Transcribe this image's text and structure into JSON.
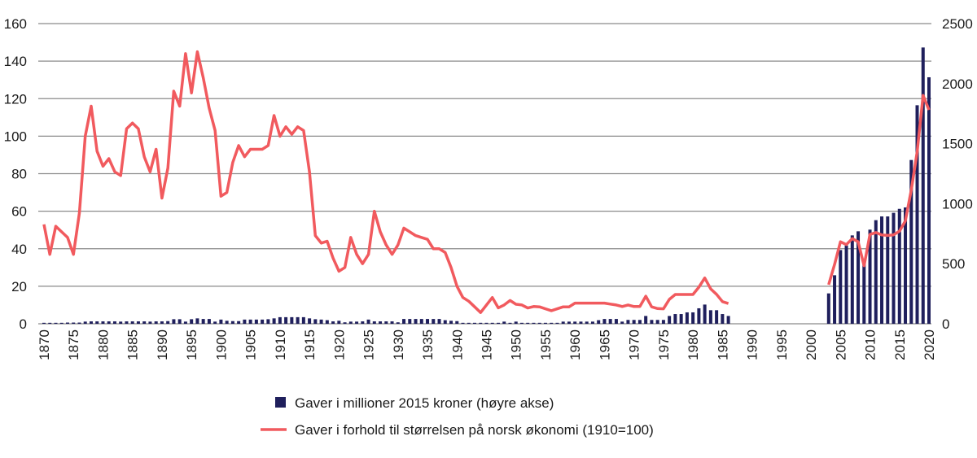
{
  "chart_data": {
    "type": "bar+line",
    "title": "",
    "xlabel": "",
    "ylabel_left": "",
    "ylabel_right": "",
    "x": [
      1870,
      1871,
      1872,
      1873,
      1874,
      1875,
      1876,
      1877,
      1878,
      1879,
      1880,
      1881,
      1882,
      1883,
      1884,
      1885,
      1886,
      1887,
      1888,
      1889,
      1890,
      1891,
      1892,
      1893,
      1894,
      1895,
      1896,
      1897,
      1898,
      1899,
      1900,
      1901,
      1902,
      1903,
      1904,
      1905,
      1906,
      1907,
      1908,
      1909,
      1910,
      1911,
      1912,
      1913,
      1914,
      1915,
      1916,
      1917,
      1918,
      1919,
      1920,
      1921,
      1922,
      1923,
      1924,
      1925,
      1926,
      1927,
      1928,
      1929,
      1930,
      1931,
      1932,
      1933,
      1934,
      1935,
      1936,
      1937,
      1938,
      1939,
      1940,
      1941,
      1942,
      1943,
      1944,
      1945,
      1946,
      1947,
      1948,
      1949,
      1950,
      1951,
      1952,
      1953,
      1954,
      1955,
      1956,
      1957,
      1958,
      1959,
      1960,
      1961,
      1962,
      1963,
      1964,
      1965,
      1966,
      1967,
      1968,
      1969,
      1970,
      1971,
      1972,
      1973,
      1974,
      1975,
      1976,
      1977,
      1978,
      1979,
      1980,
      1981,
      1982,
      1983,
      1984,
      1985,
      1986,
      1987,
      1988,
      1989,
      1990,
      1991,
      1992,
      1993,
      1994,
      1995,
      1996,
      1997,
      1998,
      1999,
      2000,
      2001,
      2002,
      2003,
      2004,
      2005,
      2006,
      2007,
      2008,
      2009,
      2010,
      2011,
      2012,
      2013,
      2014,
      2015,
      2016,
      2017,
      2018,
      2019,
      2020
    ],
    "xlim": [
      1870,
      2020
    ],
    "x_ticks": [
      "1870",
      "1875",
      "1880",
      "1885",
      "1890",
      "1895",
      "1900",
      "1905",
      "1910",
      "1915",
      "1920",
      "1925",
      "1930",
      "1935",
      "1940",
      "1945",
      "1950",
      "1955",
      "1960",
      "1965",
      "1970",
      "1975",
      "1980",
      "1985",
      "1990",
      "1995",
      "2000",
      "2005",
      "2010",
      "2015",
      "2020"
    ],
    "y_left": {
      "lim": [
        0,
        160
      ],
      "ticks": [
        "0",
        "20",
        "40",
        "60",
        "80",
        "100",
        "120",
        "140",
        "160"
      ]
    },
    "y_right": {
      "lim": [
        0,
        2500
      ],
      "ticks": [
        "0",
        "500",
        "1000",
        "1500",
        "2000",
        "2500"
      ]
    },
    "grid": true,
    "legend_placement": "bottom",
    "series": [
      {
        "name": "Gaver i millioner 2015 kroner (høyre akse)",
        "type": "bar",
        "axis": "right",
        "color": "#1f1f5c",
        "values": [
          8,
          8,
          8,
          8,
          10,
          10,
          10,
          18,
          20,
          20,
          20,
          20,
          20,
          18,
          20,
          20,
          20,
          20,
          18,
          20,
          20,
          22,
          38,
          38,
          18,
          38,
          45,
          40,
          40,
          18,
          35,
          25,
          22,
          22,
          35,
          35,
          35,
          35,
          38,
          45,
          55,
          55,
          55,
          55,
          55,
          45,
          38,
          35,
          30,
          20,
          25,
          12,
          18,
          18,
          20,
          35,
          20,
          20,
          20,
          20,
          12,
          40,
          40,
          40,
          40,
          40,
          40,
          40,
          30,
          25,
          22,
          8,
          8,
          8,
          8,
          8,
          8,
          8,
          18,
          8,
          18,
          8,
          8,
          8,
          8,
          8,
          8,
          8,
          18,
          18,
          18,
          18,
          18,
          18,
          30,
          40,
          40,
          40,
          18,
          32,
          32,
          32,
          65,
          32,
          32,
          32,
          65,
          81,
          81,
          95,
          95,
          129,
          160,
          113,
          113,
          81,
          65,
          null,
          null,
          null,
          null,
          null,
          null,
          null,
          null,
          null,
          null,
          null,
          null,
          null,
          null,
          null,
          null,
          253,
          404,
          614,
          652,
          736,
          770,
          506,
          784,
          863,
          894,
          894,
          924,
          957,
          969,
          1364,
          1820,
          2301,
          2053
        ]
      },
      {
        "name": "Gaver i forhold til størrelsen på norsk økonomi (1910=100)",
        "type": "line",
        "axis": "left",
        "color": "#f15a5e",
        "values": [
          53,
          37,
          52,
          49,
          46,
          37,
          59,
          100,
          116,
          92,
          84,
          88,
          81,
          79,
          104,
          107,
          104,
          89,
          81,
          93,
          67,
          83,
          124,
          116,
          144,
          123,
          145,
          131,
          115,
          103,
          68,
          70,
          86,
          95,
          89,
          93,
          93,
          93,
          95,
          111,
          100,
          105,
          101,
          105,
          103,
          81,
          47,
          43,
          44,
          35,
          28,
          30,
          46,
          37,
          32,
          37,
          60,
          49,
          42,
          37,
          42,
          51,
          49,
          47,
          46,
          45,
          40,
          40,
          38,
          30,
          20,
          14,
          12,
          9,
          6,
          10,
          14,
          8.5,
          10,
          12.4,
          10.4,
          10,
          8.4,
          9.2,
          9,
          8,
          7,
          8,
          9,
          9,
          11,
          11,
          11,
          11,
          11,
          11,
          10.5,
          10,
          9.2,
          10,
          9.2,
          9.2,
          14.7,
          9,
          8.1,
          8,
          13,
          15.6,
          15.6,
          15.6,
          15.6,
          19.5,
          24.4,
          18.6,
          15.7,
          11.8,
          10.8,
          null,
          null,
          null,
          null,
          null,
          null,
          null,
          null,
          null,
          null,
          null,
          null,
          null,
          null,
          null,
          null,
          20.8,
          31.7,
          43.7,
          42.2,
          45.4,
          43.7,
          30.9,
          47.6,
          48.6,
          47.4,
          47.1,
          47.4,
          49.4,
          54.8,
          71.4,
          91.6,
          121.7,
          114
        ]
      }
    ]
  }
}
